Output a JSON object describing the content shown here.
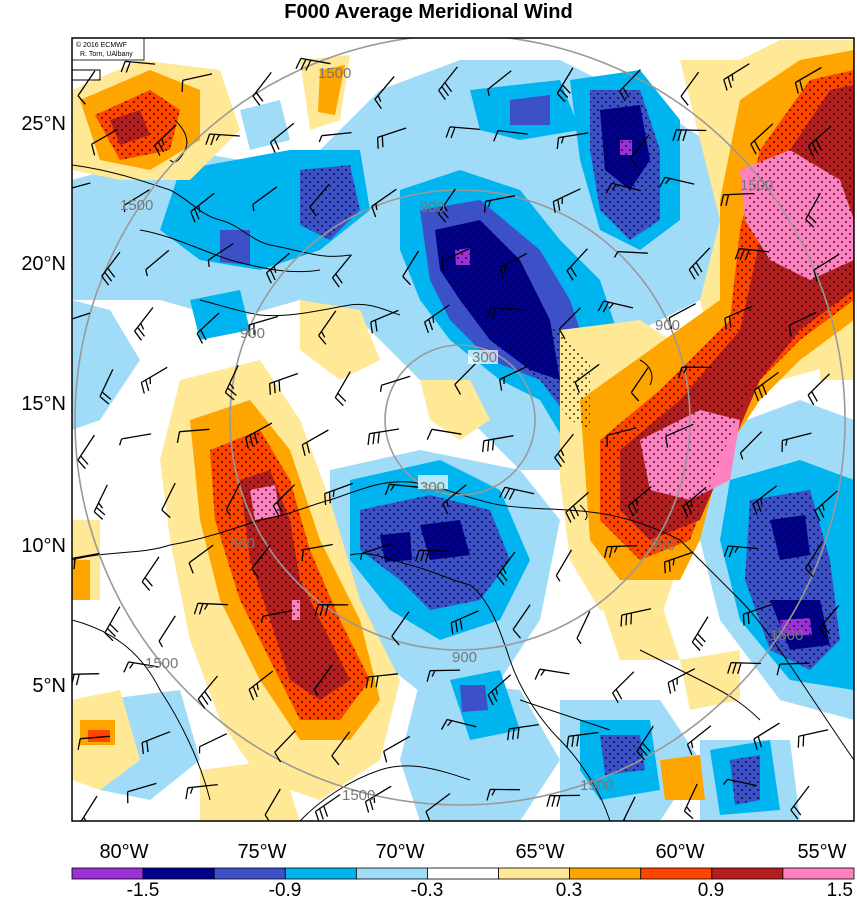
{
  "title": "F000 Average Meridional Wind",
  "credit": {
    "line1": "© 2016 ECMWF",
    "line2": "R. Torn, UAlbany"
  },
  "lat_labels": [
    "25°N",
    "20°N",
    "15°N",
    "10°N",
    "5°N"
  ],
  "lon_labels": [
    "80°W",
    "75°W",
    "70°W",
    "65°W",
    "60°W",
    "55°W"
  ],
  "range_ring_labels": [
    "300",
    "900",
    "1500"
  ],
  "colorbar": {
    "labels": [
      "-1.5",
      "-0.9",
      "-0.3",
      "0.3",
      "0.9",
      "1.5"
    ],
    "colors": [
      "#9b30d6",
      "#00008c",
      "#3c50c8",
      "#00b4f0",
      "#a0dcf8",
      "#ffffff",
      "#ffe896",
      "#ffa500",
      "#ff4500",
      "#b41e1e",
      "#ff82c0"
    ]
  }
}
